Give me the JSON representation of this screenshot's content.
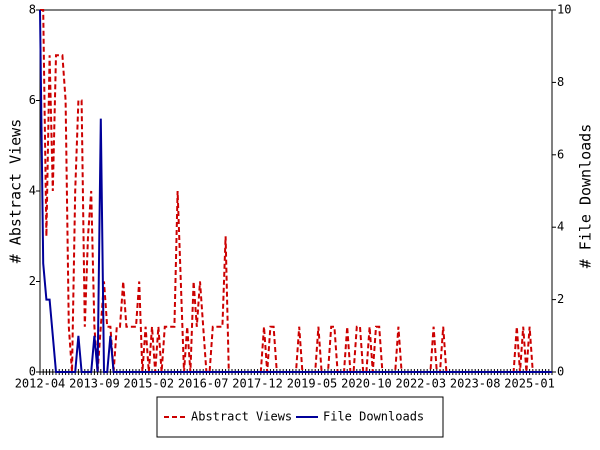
{
  "chart_data": {
    "type": "line",
    "y_label": "# Abstract Views",
    "y2_label": "# File Downloads",
    "categories": [
      "2012-04",
      null,
      null,
      null,
      null,
      null,
      null,
      null,
      null,
      null,
      null,
      null,
      null,
      null,
      null,
      null,
      null,
      "2013-09",
      null,
      null,
      null,
      null,
      null,
      null,
      null,
      null,
      null,
      null,
      null,
      null,
      null,
      null,
      null,
      null,
      "2015-02",
      null,
      null,
      null,
      null,
      null,
      null,
      null,
      null,
      null,
      null,
      null,
      null,
      null,
      null,
      null,
      null,
      "2016-07",
      null,
      null,
      null,
      null,
      null,
      null,
      null,
      null,
      null,
      null,
      null,
      null,
      null,
      null,
      null,
      null,
      "2017-12",
      null,
      null,
      null,
      null,
      null,
      null,
      null,
      null,
      null,
      null,
      null,
      null,
      null,
      null,
      null,
      null,
      "2019-05",
      null,
      null,
      null,
      null,
      null,
      null,
      null,
      null,
      null,
      null,
      null,
      null,
      null,
      null,
      null,
      null,
      "2020-10",
      null,
      null,
      null,
      null,
      null,
      null,
      null,
      null,
      null,
      null,
      null,
      null,
      null,
      null,
      null,
      null,
      "2022-03",
      null,
      null,
      null,
      null,
      null,
      null,
      null,
      null,
      null,
      null,
      null,
      null,
      null,
      null,
      null,
      null,
      "2023-08",
      null,
      null,
      null,
      null,
      null,
      null,
      null,
      null,
      null,
      null,
      null,
      null,
      null,
      null,
      null,
      null,
      "2025-01",
      null,
      null,
      null,
      null,
      null,
      null,
      null
    ],
    "series": [
      {
        "name": "Abstract Views",
        "color": "#cc0000",
        "dash": true,
        "axis": "y",
        "values": [
          8,
          8,
          3,
          7,
          4,
          7,
          7,
          7,
          6,
          1,
          0,
          4,
          6,
          6,
          1,
          3,
          4,
          1,
          0,
          1,
          2,
          1,
          1,
          0,
          1,
          1,
          2,
          1,
          1,
          1,
          1,
          2,
          0,
          1,
          0,
          1,
          0,
          1,
          0,
          1,
          1,
          1,
          1,
          4,
          2,
          0,
          1,
          0,
          2,
          1,
          2,
          1,
          0,
          0,
          1,
          1,
          1,
          1,
          3,
          0,
          0,
          0,
          0,
          0,
          0,
          0,
          0,
          0,
          0,
          0,
          1,
          0,
          1,
          1,
          0,
          0,
          0,
          0,
          0,
          0,
          0,
          1,
          0,
          0,
          0,
          0,
          0,
          1,
          0,
          0,
          0,
          1,
          1,
          0,
          0,
          0,
          1,
          0,
          0,
          1,
          1,
          0,
          0,
          1,
          0,
          1,
          1,
          0,
          0,
          0,
          0,
          0,
          1,
          0,
          0,
          0,
          0,
          0,
          0,
          0,
          0,
          0,
          0,
          1,
          0,
          0,
          1,
          0,
          0,
          0,
          0,
          0,
          0,
          0,
          0,
          0,
          0,
          0,
          0,
          0,
          0,
          0,
          0,
          0,
          0,
          0,
          0,
          0,
          0,
          1,
          0,
          1,
          0,
          1,
          0,
          0,
          0,
          0,
          0,
          0,
          0
        ]
      },
      {
        "name": "File Downloads",
        "color": "#000099",
        "dash": false,
        "axis": "y2",
        "values": [
          10,
          3,
          2,
          2,
          1,
          0,
          0,
          0,
          0,
          0,
          0,
          0,
          1,
          0,
          0,
          0,
          0,
          1,
          0,
          7,
          0,
          0,
          1,
          0,
          0,
          0,
          0,
          0,
          0,
          0,
          0,
          0,
          0,
          0,
          0,
          0,
          0,
          0,
          0,
          0,
          0,
          0,
          0,
          0,
          0,
          0,
          0,
          0,
          0,
          0,
          0,
          0,
          0,
          0,
          0,
          0,
          0,
          0,
          0,
          0,
          0,
          0,
          0,
          0,
          0,
          0,
          0,
          0,
          0,
          0,
          0,
          0,
          0,
          0,
          0,
          0,
          0,
          0,
          0,
          0,
          0,
          0,
          0,
          0,
          0,
          0,
          0,
          0,
          0,
          0,
          0,
          0,
          0,
          0,
          0,
          0,
          0,
          0,
          0,
          0,
          0,
          0,
          0,
          0,
          0,
          0,
          0,
          0,
          0,
          0,
          0,
          0,
          0,
          0,
          0,
          0,
          0,
          0,
          0,
          0,
          0,
          0,
          0,
          0,
          0,
          0,
          0,
          0,
          0,
          0,
          0,
          0,
          0,
          0,
          0,
          0,
          0,
          0,
          0,
          0,
          0,
          0,
          0,
          0,
          0,
          0,
          0,
          0,
          0,
          0,
          0,
          0,
          0,
          0,
          0,
          0,
          0,
          0,
          0,
          0,
          0
        ]
      }
    ],
    "ylim": [
      0,
      8
    ],
    "yticks": [
      0,
      2,
      4,
      6,
      8
    ],
    "y2lim": [
      0,
      10
    ],
    "y2ticks": [
      0,
      2,
      4,
      6,
      8,
      10
    ],
    "legend": "bottom"
  }
}
